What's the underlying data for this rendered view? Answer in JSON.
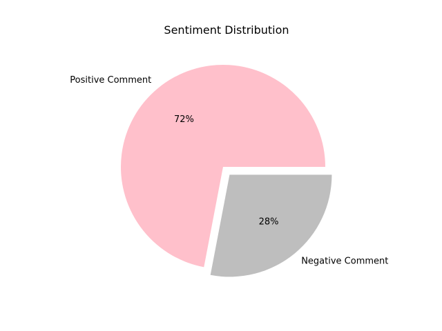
{
  "chart_data": {
    "type": "pie",
    "title": "Sentiment Distribution",
    "slices": [
      {
        "label": "Positive Comment",
        "value": 72,
        "pct_label": "72%",
        "color": "#FFC0CB",
        "explode": 0
      },
      {
        "label": "Negative Comment",
        "value": 28,
        "pct_label": "28%",
        "color": "#BEBEBE",
        "explode": 0.1
      }
    ],
    "start_angle_deg": 0,
    "direction": "counterclockwise",
    "legend": "none"
  }
}
